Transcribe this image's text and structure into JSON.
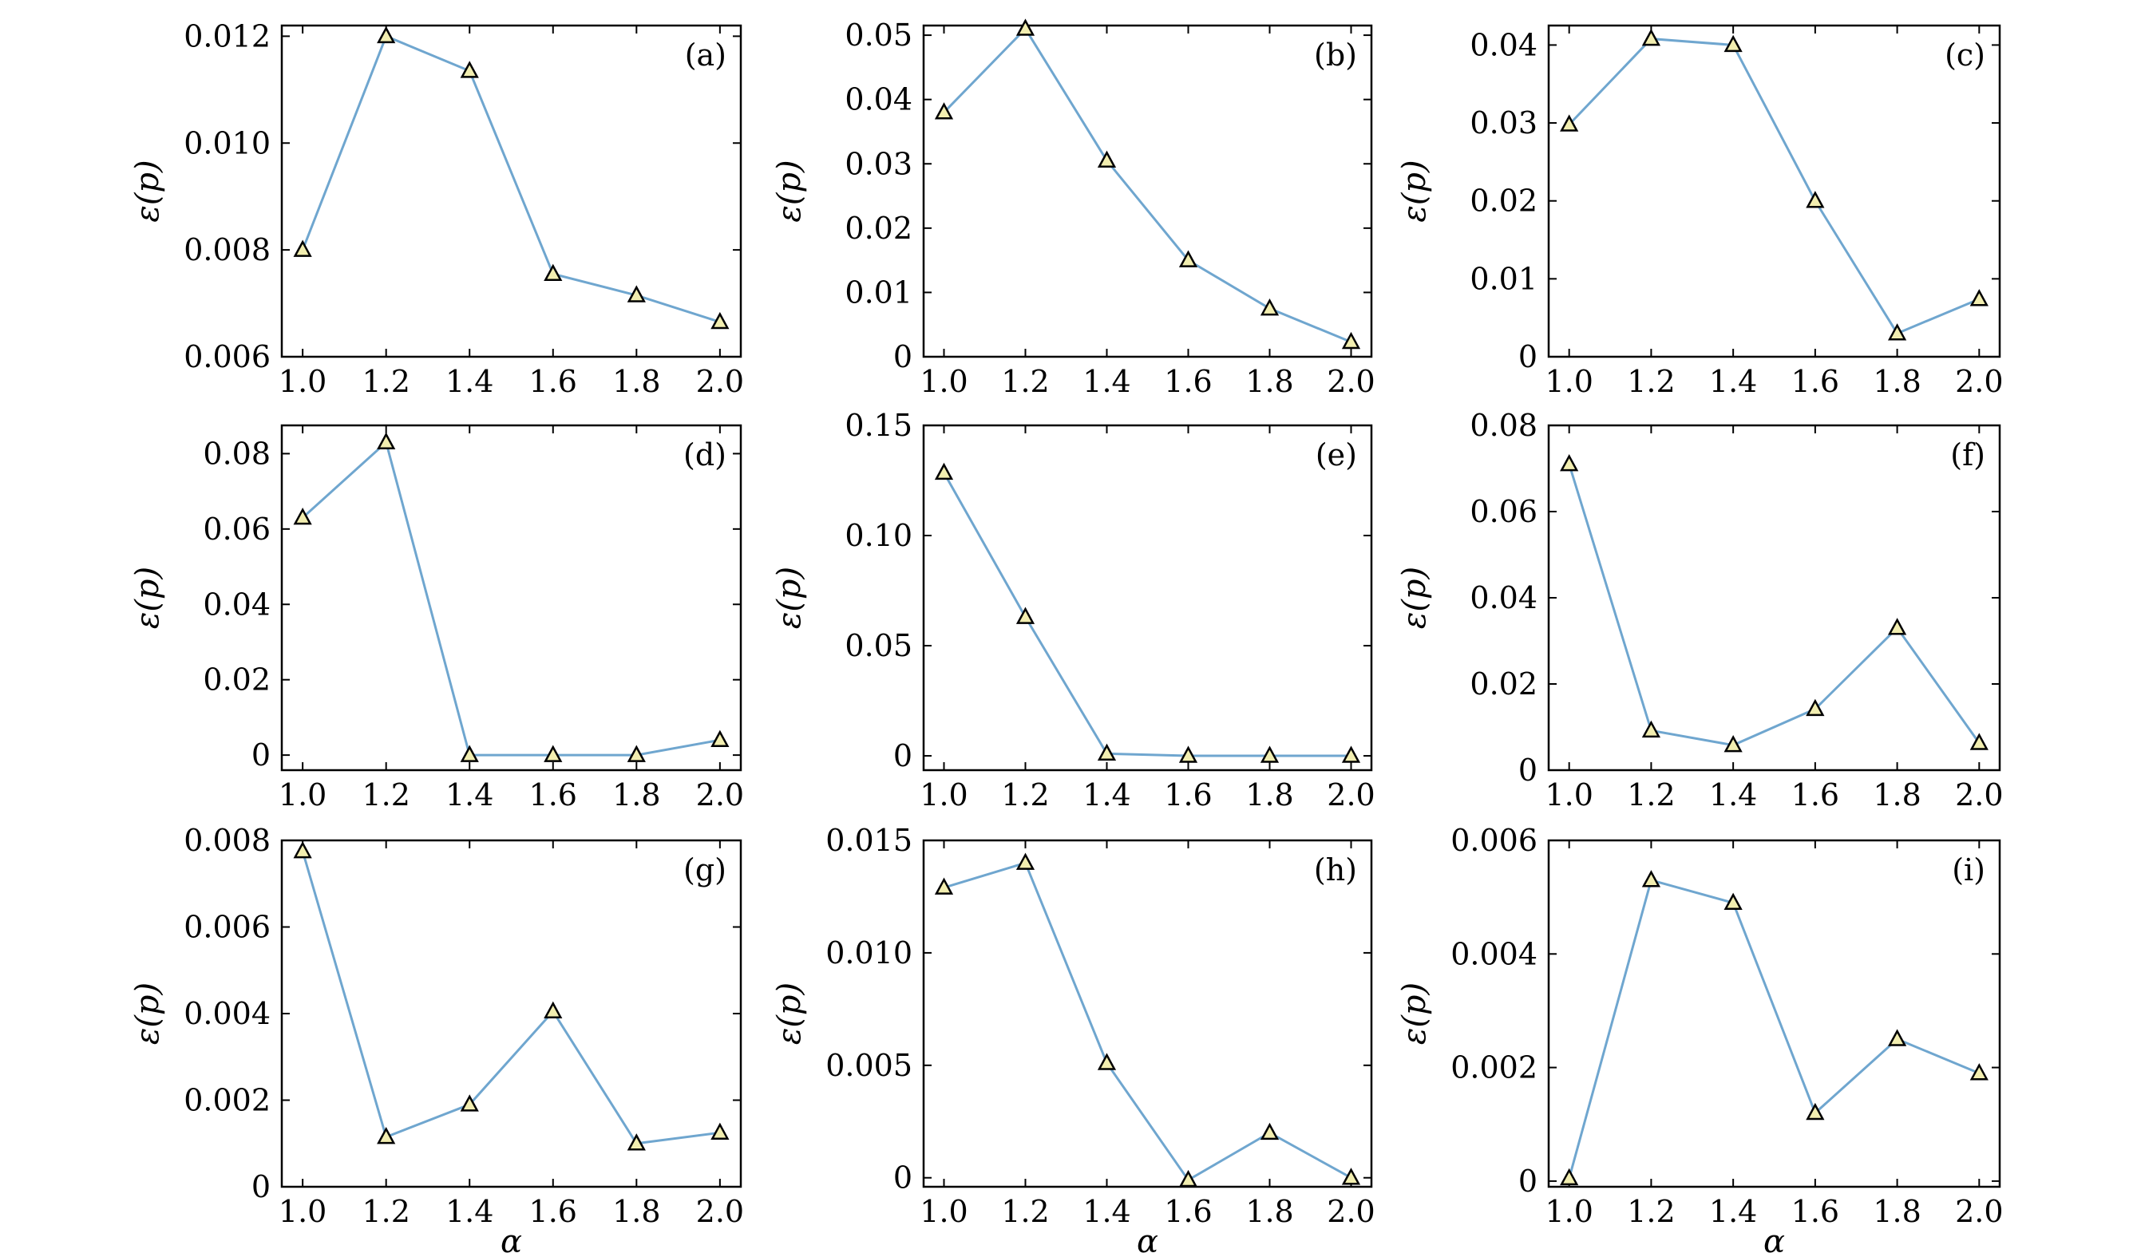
{
  "colors": {
    "line": "#6fa6cf",
    "marker_fill": "#f2eeb0",
    "marker_edge": "#000000",
    "axes": "#000000"
  },
  "chart_data": [
    {
      "type": "line",
      "panel": "(a)",
      "xlabel": "",
      "ylabel": "ε(p)",
      "x": [
        1.0,
        1.2,
        1.4,
        1.6,
        1.8,
        2.0
      ],
      "values": [
        0.008,
        0.012,
        0.01135,
        0.00755,
        0.00715,
        0.00665
      ],
      "ylim": [
        0.006,
        0.0122
      ],
      "xlim": [
        0.95,
        2.05
      ],
      "yticks": [
        0.006,
        0.008,
        0.01,
        0.012
      ],
      "ytick_labels": [
        "0.006",
        "0.008",
        "0.010",
        "0.012"
      ],
      "xticks": [
        1.0,
        1.2,
        1.4,
        1.6,
        1.8,
        2.0
      ],
      "xtick_labels": [
        "1.0",
        "1.2",
        "1.4",
        "1.6",
        "1.8",
        "2.0"
      ],
      "grid": false
    },
    {
      "type": "line",
      "panel": "(b)",
      "xlabel": "",
      "ylabel": "ε(p)",
      "x": [
        1.0,
        1.2,
        1.4,
        1.6,
        1.8,
        2.0
      ],
      "values": [
        0.038,
        0.051,
        0.0305,
        0.015,
        0.0075,
        0.0023
      ],
      "ylim": [
        0,
        0.0515
      ],
      "xlim": [
        0.95,
        2.05
      ],
      "yticks": [
        0,
        0.01,
        0.02,
        0.03,
        0.04,
        0.05
      ],
      "ytick_labels": [
        "0",
        "0.01",
        "0.02",
        "0.03",
        "0.04",
        "0.05"
      ],
      "xticks": [
        1.0,
        1.2,
        1.4,
        1.6,
        1.8,
        2.0
      ],
      "xtick_labels": [
        "1.0",
        "1.2",
        "1.4",
        "1.6",
        "1.8",
        "2.0"
      ],
      "grid": false
    },
    {
      "type": "line",
      "panel": "(c)",
      "xlabel": "",
      "ylabel": "ε(p)",
      "x": [
        1.0,
        1.2,
        1.4,
        1.6,
        1.8,
        2.0
      ],
      "values": [
        0.0298,
        0.0408,
        0.04,
        0.02,
        0.003,
        0.0074
      ],
      "ylim": [
        0,
        0.0425
      ],
      "xlim": [
        0.95,
        2.05
      ],
      "yticks": [
        0,
        0.01,
        0.02,
        0.03,
        0.04
      ],
      "ytick_labels": [
        "0",
        "0.01",
        "0.02",
        "0.03",
        "0.04"
      ],
      "xticks": [
        1.0,
        1.2,
        1.4,
        1.6,
        1.8,
        2.0
      ],
      "xtick_labels": [
        "1.0",
        "1.2",
        "1.4",
        "1.6",
        "1.8",
        "2.0"
      ],
      "grid": false
    },
    {
      "type": "line",
      "panel": "(d)",
      "xlabel": "",
      "ylabel": "ε(p)",
      "x": [
        1.0,
        1.2,
        1.4,
        1.6,
        1.8,
        2.0
      ],
      "values": [
        0.063,
        0.083,
        0.0,
        0.0,
        0.0,
        0.004
      ],
      "ylim": [
        -0.004,
        0.0875
      ],
      "xlim": [
        0.95,
        2.05
      ],
      "yticks": [
        0,
        0.02,
        0.04,
        0.06,
        0.08
      ],
      "ytick_labels": [
        "0",
        "0.02",
        "0.04",
        "0.06",
        "0.08"
      ],
      "xticks": [
        1.0,
        1.2,
        1.4,
        1.6,
        1.8,
        2.0
      ],
      "xtick_labels": [
        "1.0",
        "1.2",
        "1.4",
        "1.6",
        "1.8",
        "2.0"
      ],
      "grid": false
    },
    {
      "type": "line",
      "panel": "(e)",
      "xlabel": "",
      "ylabel": "ε(p)",
      "x": [
        1.0,
        1.2,
        1.4,
        1.6,
        1.8,
        2.0
      ],
      "values": [
        0.1285,
        0.063,
        0.001,
        0.0,
        0.0,
        0.0
      ],
      "ylim": [
        -0.0065,
        0.15
      ],
      "xlim": [
        0.95,
        2.05
      ],
      "yticks": [
        0,
        0.05,
        0.1,
        0.15
      ],
      "ytick_labels": [
        "0",
        "0.05",
        "0.10",
        "0.15"
      ],
      "xticks": [
        1.0,
        1.2,
        1.4,
        1.6,
        1.8,
        2.0
      ],
      "xtick_labels": [
        "1.0",
        "1.2",
        "1.4",
        "1.6",
        "1.8",
        "2.0"
      ],
      "grid": false
    },
    {
      "type": "line",
      "panel": "(f)",
      "xlabel": "",
      "ylabel": "ε(p)",
      "x": [
        1.0,
        1.2,
        1.4,
        1.6,
        1.8,
        2.0
      ],
      "values": [
        0.071,
        0.0092,
        0.0058,
        0.0142,
        0.033,
        0.0063
      ],
      "ylim": [
        0,
        0.08
      ],
      "xlim": [
        0.95,
        2.05
      ],
      "yticks": [
        0,
        0.02,
        0.04,
        0.06,
        0.08
      ],
      "ytick_labels": [
        "0",
        "0.02",
        "0.04",
        "0.06",
        "0.08"
      ],
      "xticks": [
        1.0,
        1.2,
        1.4,
        1.6,
        1.8,
        2.0
      ],
      "xtick_labels": [
        "1.0",
        "1.2",
        "1.4",
        "1.6",
        "1.8",
        "2.0"
      ],
      "grid": false
    },
    {
      "type": "line",
      "panel": "(g)",
      "xlabel": "α",
      "ylabel": "ε(p)",
      "x": [
        1.0,
        1.2,
        1.4,
        1.6,
        1.8,
        2.0
      ],
      "values": [
        0.00775,
        0.00115,
        0.0019,
        0.00405,
        0.001,
        0.00125
      ],
      "ylim": [
        0,
        0.008
      ],
      "xlim": [
        0.95,
        2.05
      ],
      "yticks": [
        0,
        0.002,
        0.004,
        0.006,
        0.008
      ],
      "ytick_labels": [
        "0",
        "0.002",
        "0.004",
        "0.006",
        "0.008"
      ],
      "xticks": [
        1.0,
        1.2,
        1.4,
        1.6,
        1.8,
        2.0
      ],
      "xtick_labels": [
        "1.0",
        "1.2",
        "1.4",
        "1.6",
        "1.8",
        "2.0"
      ],
      "grid": false
    },
    {
      "type": "line",
      "panel": "(h)",
      "xlabel": "α",
      "ylabel": "ε(p)",
      "x": [
        1.0,
        1.2,
        1.4,
        1.6,
        1.8,
        2.0
      ],
      "values": [
        0.0129,
        0.014,
        0.0051,
        -0.0001,
        0.002,
        0.0
      ],
      "ylim": [
        -0.0004,
        0.015
      ],
      "xlim": [
        0.95,
        2.05
      ],
      "yticks": [
        0,
        0.005,
        0.01,
        0.015
      ],
      "ytick_labels": [
        "0",
        "0.005",
        "0.010",
        "0.015"
      ],
      "xticks": [
        1.0,
        1.2,
        1.4,
        1.6,
        1.8,
        2.0
      ],
      "xtick_labels": [
        "1.0",
        "1.2",
        "1.4",
        "1.6",
        "1.8",
        "2.0"
      ],
      "grid": false
    },
    {
      "type": "line",
      "panel": "(i)",
      "xlabel": "α",
      "ylabel": "ε(p)",
      "x": [
        1.0,
        1.2,
        1.4,
        1.6,
        1.8,
        2.0
      ],
      "values": [
        5e-05,
        0.0053,
        0.0049,
        0.0012,
        0.0025,
        0.0019
      ],
      "ylim": [
        -0.0001,
        0.006
      ],
      "xlim": [
        0.95,
        2.05
      ],
      "yticks": [
        0,
        0.002,
        0.004,
        0.006
      ],
      "ytick_labels": [
        "0",
        "0.002",
        "0.004",
        "0.006"
      ],
      "xticks": [
        1.0,
        1.2,
        1.4,
        1.6,
        1.8,
        2.0
      ],
      "xtick_labels": [
        "1.0",
        "1.2",
        "1.4",
        "1.6",
        "1.8",
        "2.0"
      ],
      "grid": false
    }
  ]
}
